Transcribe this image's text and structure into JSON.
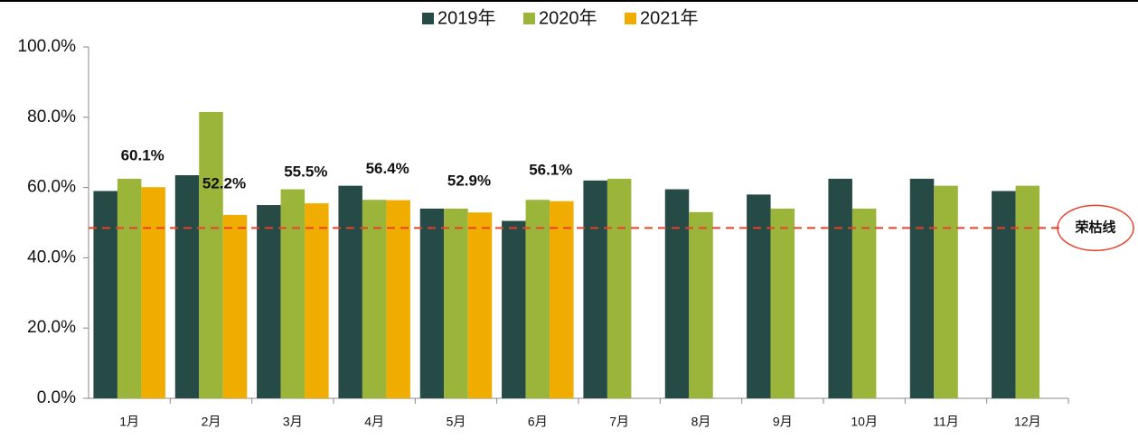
{
  "chart_data": {
    "type": "bar",
    "categories": [
      "1月",
      "2月",
      "3月",
      "4月",
      "5月",
      "6月",
      "7月",
      "8月",
      "9月",
      "10月",
      "11月",
      "12月"
    ],
    "series": [
      {
        "name": "2019年",
        "color": "#264a45",
        "values": [
          59,
          63.5,
          55,
          60.5,
          54,
          50.5,
          62,
          59.5,
          58,
          62.5,
          62.5,
          59
        ]
      },
      {
        "name": "2020年",
        "color": "#9bb53a",
        "values": [
          62.5,
          81.5,
          59.5,
          56.5,
          54,
          56.5,
          62.5,
          53,
          54,
          54,
          60.5,
          60.5
        ]
      },
      {
        "name": "2021年",
        "color": "#f0ad00",
        "values": [
          60.1,
          52.2,
          55.5,
          56.4,
          52.9,
          56.1,
          null,
          null,
          null,
          null,
          null,
          null
        ],
        "value_labels": [
          "60.1%",
          "52.2%",
          "55.5%",
          "56.4%",
          "52.9%",
          "56.1%",
          null,
          null,
          null,
          null,
          null,
          null
        ]
      }
    ],
    "ylim": [
      0,
      100
    ],
    "yticks": [
      {
        "value": 0,
        "label": "0.0%"
      },
      {
        "value": 20,
        "label": "20.0%"
      },
      {
        "value": 40,
        "label": "40.0%"
      },
      {
        "value": 60,
        "label": "60.0%"
      },
      {
        "value": 80,
        "label": "80.0%"
      },
      {
        "value": 100,
        "label": "100.0%"
      }
    ],
    "reference_line": {
      "value": 48.5,
      "label": "荣枯线",
      "color": "#e8402a"
    },
    "legend": "top"
  }
}
